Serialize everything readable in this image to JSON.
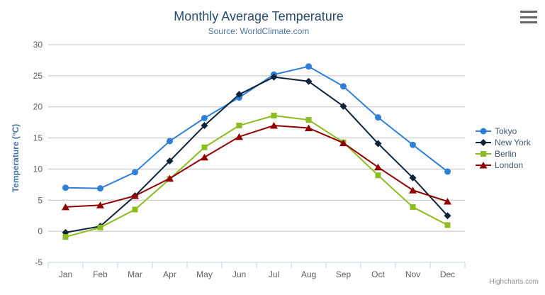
{
  "chart_data": {
    "type": "line",
    "title": "Monthly Average Temperature",
    "subtitle": "Source: WorldClimate.com",
    "xlabel": "",
    "ylabel": "Temperature (°C)",
    "ylim": [
      -5,
      30
    ],
    "yticks": [
      -5,
      0,
      5,
      10,
      15,
      20,
      25,
      30
    ],
    "grid": true,
    "legend_position": "right",
    "categories": [
      "Jan",
      "Feb",
      "Mar",
      "Apr",
      "May",
      "Jun",
      "Jul",
      "Aug",
      "Sep",
      "Oct",
      "Nov",
      "Dec"
    ],
    "series": [
      {
        "name": "Tokyo",
        "color": "#2f7ed8",
        "marker": "circle",
        "values": [
          7.0,
          6.9,
          9.5,
          14.5,
          18.2,
          21.5,
          25.2,
          26.5,
          23.3,
          18.3,
          13.9,
          9.6
        ]
      },
      {
        "name": "New York",
        "color": "#0d233a",
        "marker": "diamond",
        "values": [
          -0.2,
          0.8,
          5.7,
          11.3,
          17.0,
          22.0,
          24.8,
          24.1,
          20.1,
          14.1,
          8.6,
          2.5
        ]
      },
      {
        "name": "Berlin",
        "color": "#8bbc21",
        "marker": "square",
        "values": [
          -0.9,
          0.6,
          3.5,
          8.4,
          13.5,
          17.0,
          18.6,
          17.9,
          14.3,
          9.0,
          3.9,
          1.0
        ]
      },
      {
        "name": "London",
        "color": "#910000",
        "marker": "triangle",
        "values": [
          3.9,
          4.2,
          5.7,
          8.5,
          11.9,
          15.2,
          17.0,
          16.6,
          14.2,
          10.3,
          6.6,
          4.8
        ]
      }
    ],
    "credits": "Highcharts.com"
  },
  "context_menu_icon": "hamburger-menu-icon",
  "colors": {
    "title": "#274b6d",
    "subtitle": "#4d759e",
    "axis_title": "#4572a7",
    "axis_labels": "#606060",
    "legend_text": "#3e576f",
    "gridline": "#c0c0c0",
    "axis_line": "#c0d0e0",
    "credits": "#909090",
    "menu_icon": "#666666",
    "background": "#ffffff"
  }
}
